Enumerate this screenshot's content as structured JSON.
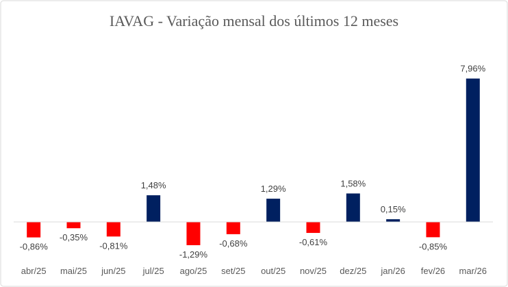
{
  "chart_data": {
    "type": "bar",
    "title": "IAVAG - Variação mensal dos últimos 12 meses",
    "xlabel": "",
    "ylabel": "",
    "categories": [
      "abr/25",
      "mai/25",
      "jun/25",
      "jul/25",
      "ago/25",
      "set/25",
      "out/25",
      "nov/25",
      "dez/25",
      "jan/26",
      "fev/26",
      "mar/26"
    ],
    "values": [
      -0.86,
      -0.35,
      -0.81,
      1.48,
      -1.29,
      -0.68,
      1.29,
      -0.61,
      1.58,
      0.15,
      -0.85,
      7.96
    ],
    "data_labels": [
      "-0,86%",
      "-0,35%",
      "-0,81%",
      "1,48%",
      "-1,29%",
      "-0,68%",
      "1,29%",
      "-0,61%",
      "1,58%",
      "0,15%",
      "-0,85%",
      "7,96%"
    ],
    "ylim": [
      -1.5,
      8.5
    ],
    "grid": false,
    "legend": "none",
    "colors": {
      "positive": "#002060",
      "negative": "#FF0000"
    }
  }
}
